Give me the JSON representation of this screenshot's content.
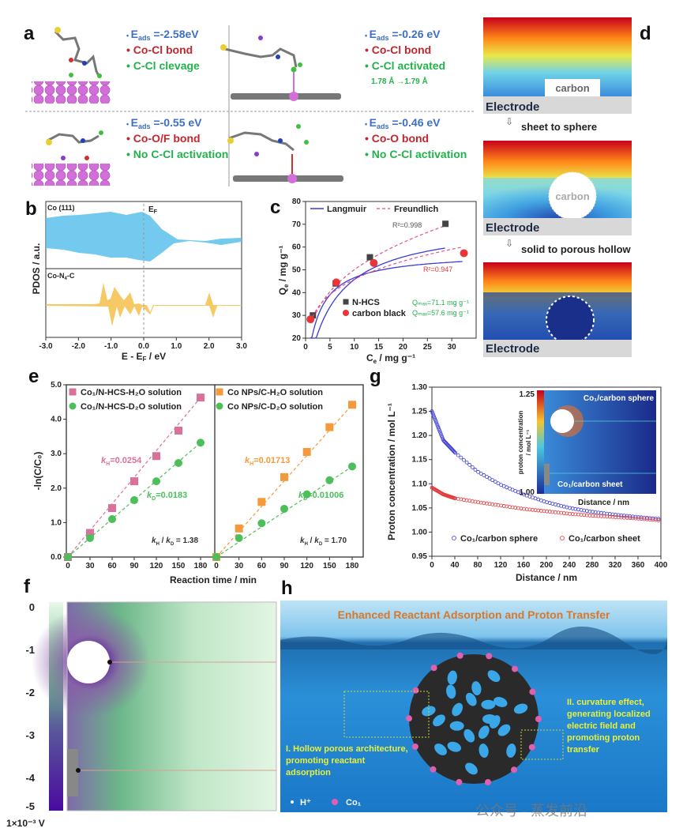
{
  "panel_labels": {
    "a": "a",
    "b": "b",
    "c": "c",
    "d": "d",
    "e": "e",
    "f": "f",
    "g": "g",
    "h": "h"
  },
  "panel_a": {
    "items": [
      {
        "eads_label": "E",
        "eads_sub": "ads",
        "eads_value": " =-2.58eV",
        "bond": "Co-Cl bond",
        "activation": "C-Cl clevage",
        "extra": ""
      },
      {
        "eads_label": "E",
        "eads_sub": "ads",
        "eads_value": " =-0.26 eV",
        "bond": "Co-Cl bond",
        "activation": "C-Cl activated",
        "extra": "1.78 Å →1.79 Å"
      },
      {
        "eads_label": "E",
        "eads_sub": "ads",
        "eads_value": " =-0.55 eV",
        "bond": "Co-O/F bond",
        "activation": "No C-Cl activation",
        "extra": ""
      },
      {
        "eads_label": "E",
        "eads_sub": "ads",
        "eads_value": " =-0.46 eV",
        "bond": "Co-O bond",
        "activation": "No C-Cl activation",
        "extra": ""
      }
    ],
    "colors": {
      "energy": "#3d6fc4",
      "bond": "#c4262e",
      "activation": "#22b24c",
      "co_atom": "#d36fd8"
    }
  },
  "panel_b": {
    "top_label": "Co (111)",
    "bottom_label_main": "Co-N",
    "bottom_label_sub": "4",
    "bottom_label_end": "-C",
    "ef_label": "E",
    "ef_sub": "F",
    "ylabel": "PDOS / a.u.",
    "xlabel_main": "E - E",
    "xlabel_sub": "F",
    "xlabel_end": " / eV",
    "xticks": [
      "-3.0",
      "-2.0",
      "-1.0",
      "0.0",
      "1.0",
      "2.0",
      "3.0"
    ],
    "colors": {
      "co111": "#5bc0eb",
      "con4c": "#f5c04a"
    }
  },
  "panel_d": {
    "carbon_label": "carbon",
    "carbon_label_2": "carbon",
    "electrode_labels": [
      "Electrode",
      "Electrode",
      "Electrode"
    ],
    "step_1": "sheet to sphere",
    "step_2": "solid to porous hollow"
  },
  "panel_f": {
    "colorbar_ticks": [
      "0",
      "-1",
      "-2",
      "-3",
      "-4",
      "-5"
    ],
    "unit": "1×10⁻³ V"
  },
  "panel_h": {
    "title": "Enhanced Reactant Adsorption and Proton Transfer",
    "note_1": [
      "I. Hollow porous architecture,",
      "promoting reactant",
      "adsorption"
    ],
    "note_2": [
      "II. curvature effect,",
      "generating localized",
      "electric field and",
      "promoting proton",
      "transfer"
    ],
    "legend_h": "H⁺",
    "legend_co": "Co₁",
    "watermark": "公众号 · 蒸发前沿"
  },
  "chart_data": [
    {
      "panel": "c",
      "type": "scatter",
      "xlabel_main": "C",
      "xlabel_sub": "e",
      "xlabel_end": " / mg g⁻¹",
      "ylabel_main": "Q",
      "ylabel_sub": "e",
      "ylabel_end": " / mg g⁻¹",
      "xlim": [
        0,
        35
      ],
      "ylim": [
        20,
        80
      ],
      "xticks": [
        "0",
        "5",
        "10",
        "15",
        "20",
        "25",
        "30"
      ],
      "yticks": [
        "20",
        "30",
        "40",
        "50",
        "60",
        "70",
        "80"
      ],
      "fit_legend": [
        "Langmuir",
        "Freundlich"
      ],
      "series": [
        {
          "name": "N-HCS",
          "color": "#444444",
          "marker": "square",
          "x": [
            1.5,
            6.2,
            13.2,
            28.7
          ],
          "y": [
            30,
            44,
            55.5,
            70.2
          ],
          "r2": "R²=0.998",
          "qmax": "Qₘₐₓ=71.1 mg g⁻¹"
        },
        {
          "name": "carbon black",
          "color": "#e8353a",
          "marker": "circle",
          "x": [
            1.0,
            6.3,
            14.0,
            32.5
          ],
          "y": [
            28.3,
            44.5,
            53,
            57.3
          ],
          "r2": "R²=0.947",
          "qmax": "Qₘₐₓ=57.6 mg g⁻¹"
        }
      ],
      "grid": false,
      "legend": "top"
    },
    {
      "panel": "e-left",
      "type": "scatter",
      "ylabel": "-ln(C/C₀)",
      "xlabel": "Reaction time / min",
      "xlim": [
        0,
        180
      ],
      "ylim": [
        0,
        5
      ],
      "xticks": [
        "0",
        "30",
        "60",
        "90",
        "120",
        "150",
        "180"
      ],
      "yticks": [
        "0.0",
        "1.0",
        "2.0",
        "3.0",
        "4.0",
        "5.0"
      ],
      "x": [
        0,
        30,
        60,
        90,
        120,
        150,
        180
      ],
      "series": [
        {
          "name": "Co₁/N-HCS-H₂O solution",
          "color": "#d9719a",
          "marker": "square",
          "y": [
            0,
            0.7,
            1.42,
            2.2,
            2.93,
            3.67,
            4.63
          ],
          "k_label": "H",
          "k_value": "=0.0254"
        },
        {
          "name": "Co₁/N-HCS-D₂O solution",
          "color": "#4cbf5a",
          "marker": "circle",
          "y": [
            0,
            0.55,
            1.1,
            1.65,
            2.2,
            2.73,
            3.32
          ],
          "k_label": "D",
          "k_value": "=0.0183"
        }
      ],
      "ratio": " = 1.38"
    },
    {
      "panel": "e-right",
      "type": "scatter",
      "xlim": [
        0,
        180
      ],
      "ylim": [
        0,
        5
      ],
      "xticks": [
        "0",
        "30",
        "60",
        "90",
        "120",
        "150",
        "180"
      ],
      "x": [
        0,
        30,
        60,
        90,
        120,
        150,
        180
      ],
      "series": [
        {
          "name": "Co NPs/C-H₂O solution",
          "color": "#f59a3c",
          "marker": "square",
          "y": [
            0,
            0.83,
            1.6,
            2.32,
            3.05,
            3.77,
            4.42
          ],
          "k_label": "H",
          "k_value": "=0.01713"
        },
        {
          "name": "Co NPs/C-D₂O solution",
          "color": "#4cbf5a",
          "marker": "circle",
          "y": [
            0,
            0.55,
            0.98,
            1.4,
            1.82,
            2.23,
            2.63
          ],
          "k_label": "D",
          "k_value": "=0.01006"
        }
      ],
      "ratio": " = 1.70"
    },
    {
      "panel": "g",
      "type": "scatter",
      "ylabel": "Proton concentration / mol L⁻¹",
      "xlabel": "Distance / nm",
      "xlim": [
        0,
        400
      ],
      "ylim": [
        0.95,
        1.3
      ],
      "xticks": [
        "0",
        "40",
        "80",
        "120",
        "160",
        "200",
        "240",
        "280",
        "320",
        "360",
        "400"
      ],
      "yticks": [
        "0.95",
        "1.00",
        "1.05",
        "1.10",
        "1.15",
        "1.20",
        "1.25",
        "1.30"
      ],
      "x": [
        0,
        20,
        40,
        80,
        120,
        160,
        200,
        240,
        280,
        320,
        360,
        400
      ],
      "series": [
        {
          "name": "Co₁/carbon sphere",
          "color": "#3b3bd6",
          "marker": "open-circle",
          "y": [
            1.25,
            1.19,
            1.165,
            1.125,
            1.098,
            1.078,
            1.062,
            1.05,
            1.042,
            1.036,
            1.031,
            1.027
          ]
        },
        {
          "name": "Co₁/carbon sheet",
          "color": "#e23a3a",
          "marker": "open-circle",
          "y": [
            1.092,
            1.078,
            1.07,
            1.062,
            1.055,
            1.048,
            1.043,
            1.038,
            1.034,
            1.031,
            1.028,
            1.024
          ]
        }
      ],
      "inset": {
        "colorbar_max": "1.25",
        "colorbar_min": "1.00",
        "colorbar_label_1": "proton concentration",
        "colorbar_label_2": "/ mol L⁻¹",
        "sphere_label": "Co₁/carbon sphere",
        "sheet_label": "Co₁/carbon sheet",
        "xlabel": "Distance / nm"
      },
      "legend": "bottom"
    }
  ]
}
